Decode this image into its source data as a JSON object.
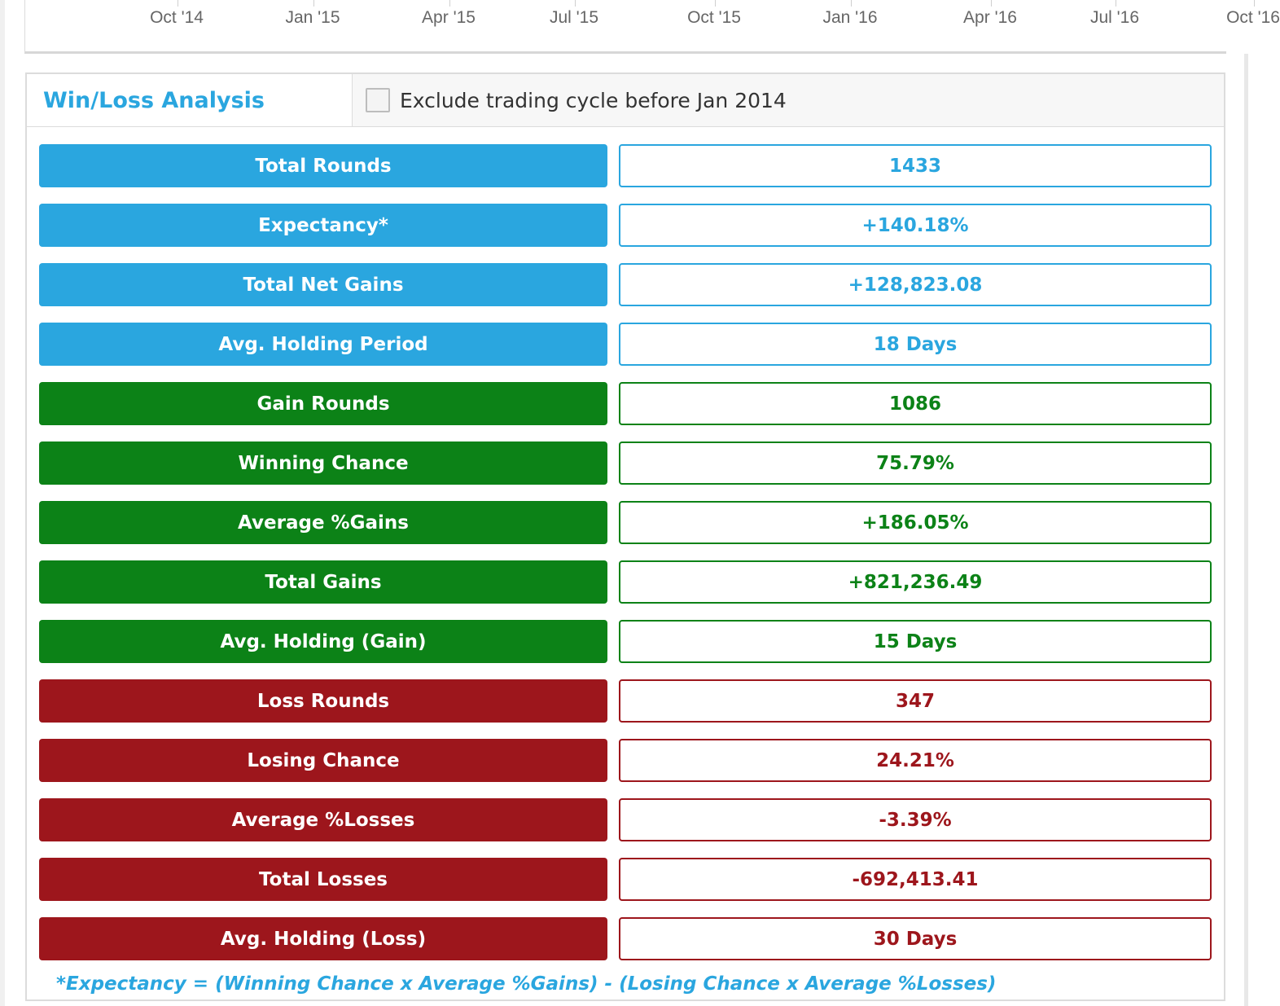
{
  "axis": {
    "tick_labels": [
      "Oct '14",
      "Jan '15",
      "Apr '15",
      "Jul '15",
      "Oct '15",
      "Jan '16",
      "Apr '16",
      "Jul '16",
      "Oct '16"
    ]
  },
  "panel": {
    "title": "Win/Loss Analysis",
    "exclude_option": {
      "label": "Exclude trading cycle before Jan 2014",
      "checked": false
    }
  },
  "colors": {
    "blue": "#2aa6df",
    "green": "#0c8217",
    "red": "#9d161c"
  },
  "stats": [
    {
      "label": "Total Rounds",
      "value": "1433",
      "group": "blue"
    },
    {
      "label": "Expectancy*",
      "value": "+140.18%",
      "group": "blue"
    },
    {
      "label": "Total Net Gains",
      "value": "+128,823.08",
      "group": "blue"
    },
    {
      "label": "Avg. Holding Period",
      "value": "18 Days",
      "group": "blue"
    },
    {
      "label": "Gain Rounds",
      "value": "1086",
      "group": "green"
    },
    {
      "label": "Winning Chance",
      "value": "75.79%",
      "group": "green"
    },
    {
      "label": "Average %Gains",
      "value": "+186.05%",
      "group": "green"
    },
    {
      "label": "Total Gains",
      "value": "+821,236.49",
      "group": "green"
    },
    {
      "label": "Avg. Holding (Gain)",
      "value": "15 Days",
      "group": "green"
    },
    {
      "label": "Loss Rounds",
      "value": "347",
      "group": "red"
    },
    {
      "label": "Losing Chance",
      "value": "24.21%",
      "group": "red"
    },
    {
      "label": "Average %Losses",
      "value": "-3.39%",
      "group": "red"
    },
    {
      "label": "Total Losses",
      "value": "-692,413.41",
      "group": "red"
    },
    {
      "label": "Avg. Holding (Loss)",
      "value": "30 Days",
      "group": "red"
    }
  ],
  "footnote": "*Expectancy = (Winning Chance x Average %Gains) - (Losing Chance x Average %Losses)"
}
